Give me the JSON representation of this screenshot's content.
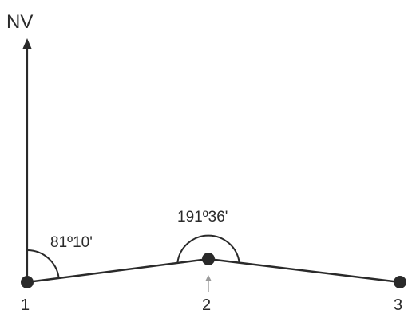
{
  "north_label": "NV",
  "angles": [
    {
      "value": "81º10'"
    },
    {
      "value": "191º36'"
    }
  ],
  "stations": [
    {
      "label": "1"
    },
    {
      "label": "2"
    },
    {
      "label": "3"
    }
  ],
  "colors": {
    "line": "#2a2a2a",
    "point": "#2a2a2a",
    "pointer": "#9a9a9a",
    "background": "#ffffff"
  }
}
